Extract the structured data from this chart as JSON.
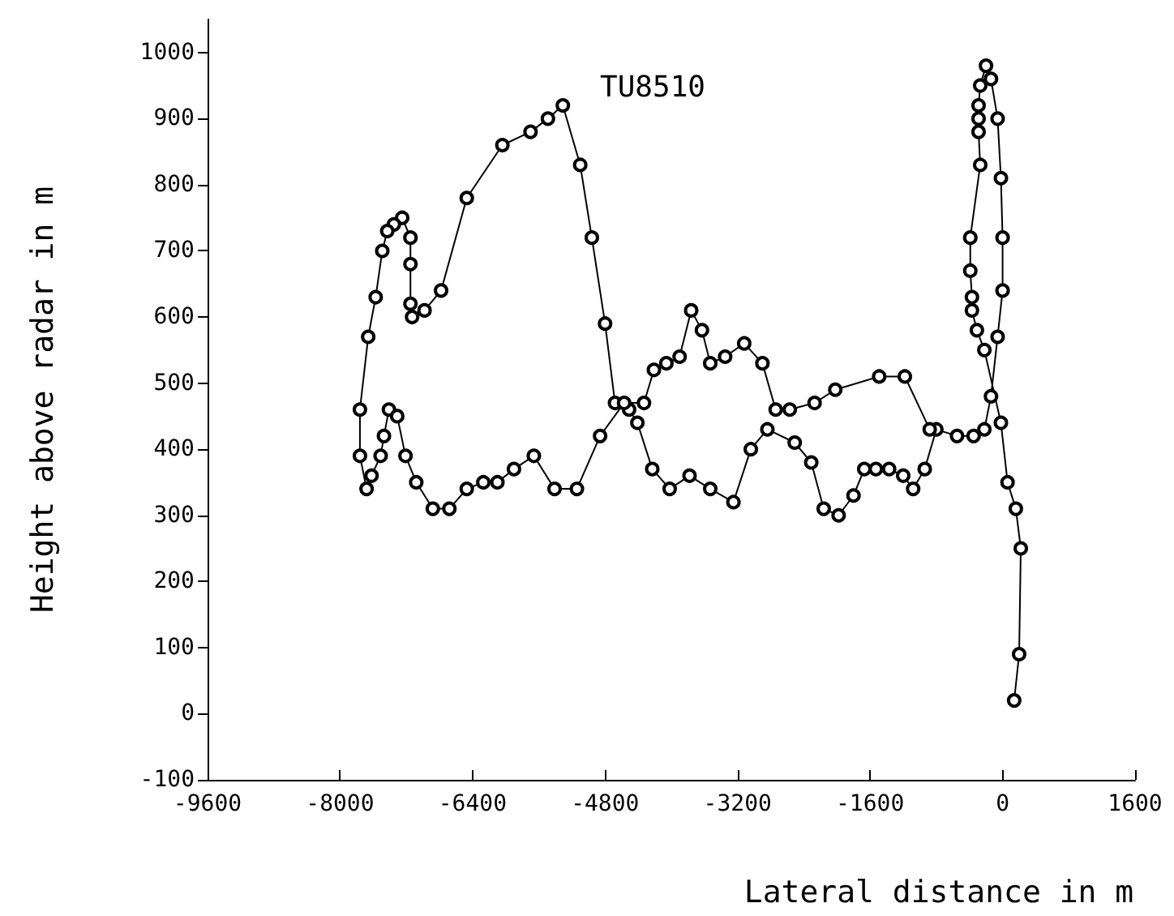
{
  "chart_data": {
    "type": "line",
    "title": "TU8510",
    "xlabel": "Lateral distance in m",
    "ylabel": "Height above radar in m",
    "xlim": [
      -9600,
      1600
    ],
    "xticks": [
      -9600,
      -8000,
      -6400,
      -4800,
      -3200,
      -1600,
      0,
      1600
    ],
    "ylim": [
      -100,
      1050
    ],
    "yticks": [
      -100,
      0,
      100,
      200,
      300,
      400,
      500,
      600,
      700,
      800,
      900,
      1000
    ],
    "grid": false,
    "marker": "circle",
    "line_style": "solid",
    "series": [
      {
        "color": "#000000",
        "x": [
          140,
          200,
          220,
          160,
          60,
          -20,
          -220,
          -310,
          -370,
          -370,
          -390,
          -390,
          -270,
          -290,
          -290,
          -290,
          -270,
          -200,
          -140,
          -60,
          -20,
          0,
          0,
          -60,
          -140,
          -220,
          -350,
          -550,
          -800,
          -940,
          -1080,
          -1200,
          -1370,
          -1530,
          -1670,
          -1800,
          -1980,
          -2160,
          -2310,
          -2510,
          -2840,
          -3040,
          -3250,
          -3530,
          -3780,
          -4020,
          -4230,
          -4410,
          -4510,
          -4680,
          -4800,
          -4960,
          -5100,
          -5310,
          -5490,
          -5700,
          -6040,
          -6470,
          -6780,
          -6980,
          -7130,
          -7150,
          -7150,
          -7150,
          -7250,
          -7350,
          -7430,
          -7490,
          -7570,
          -7660,
          -7760,
          -7760,
          -7680,
          -7620,
          -7510,
          -7470,
          -7410,
          -7310,
          -7210,
          -7080,
          -6880,
          -6680,
          -6470,
          -6270,
          -6100,
          -5900,
          -5660,
          -5410,
          -5140,
          -4860,
          -4570,
          -4330,
          -4210,
          -4060,
          -3900,
          -3760,
          -3630,
          -3530,
          -3350,
          -3120,
          -2900,
          -2740,
          -2570,
          -2270,
          -2020,
          -1490,
          -1180,
          -880
        ],
        "values": [
          20,
          90,
          250,
          310,
          350,
          440,
          550,
          580,
          610,
          630,
          670,
          720,
          830,
          880,
          900,
          920,
          950,
          980,
          960,
          900,
          810,
          720,
          640,
          570,
          480,
          430,
          420,
          420,
          430,
          370,
          340,
          360,
          370,
          370,
          370,
          330,
          300,
          310,
          380,
          410,
          430,
          400,
          320,
          340,
          360,
          340,
          370,
          440,
          460,
          470,
          590,
          720,
          830,
          920,
          900,
          880,
          860,
          780,
          640,
          610,
          600,
          620,
          680,
          720,
          750,
          740,
          730,
          700,
          630,
          570,
          460,
          390,
          340,
          360,
          390,
          420,
          460,
          450,
          390,
          350,
          310,
          310,
          340,
          350,
          350,
          370,
          390,
          340,
          340,
          420,
          470,
          470,
          520,
          530,
          540,
          610,
          580,
          530,
          540,
          560,
          530,
          460,
          460,
          470,
          490,
          510,
          510,
          430
        ]
      }
    ]
  }
}
